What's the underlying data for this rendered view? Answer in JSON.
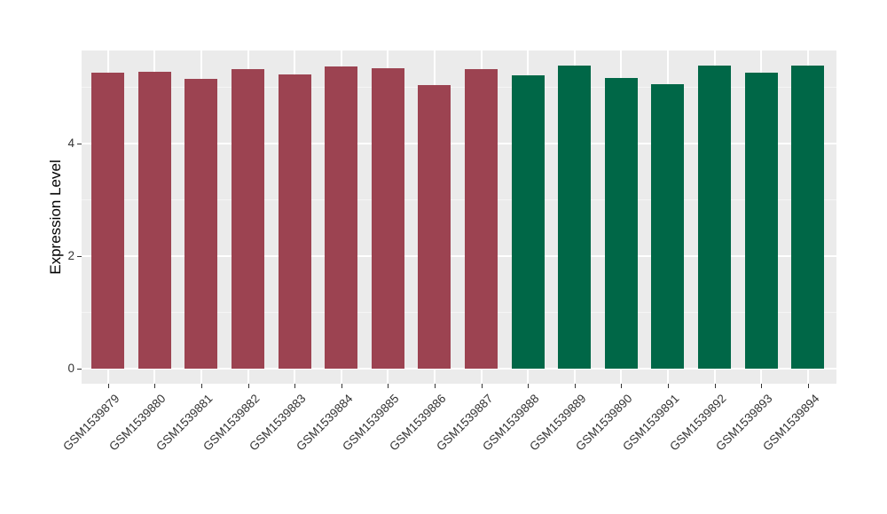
{
  "chart_data": {
    "type": "bar",
    "title": "",
    "xlabel": "",
    "ylabel": "Expression Level",
    "categories": [
      "GSM1539879",
      "GSM1539880",
      "GSM1539881",
      "GSM1539882",
      "GSM1539883",
      "GSM1539884",
      "GSM1539885",
      "GSM1539886",
      "GSM1539887",
      "GSM1539888",
      "GSM1539889",
      "GSM1539890",
      "GSM1539891",
      "GSM1539892",
      "GSM1539893",
      "GSM1539894"
    ],
    "values": [
      5.25,
      5.28,
      5.15,
      5.32,
      5.22,
      5.36,
      5.33,
      5.04,
      5.32,
      5.21,
      5.38,
      5.16,
      5.05,
      5.39,
      5.25,
      5.39
    ],
    "bar_colors": [
      "#9C4351",
      "#9C4351",
      "#9C4351",
      "#9C4351",
      "#9C4351",
      "#9C4351",
      "#9C4351",
      "#9C4351",
      "#9C4351",
      "#006747",
      "#006747",
      "#006747",
      "#006747",
      "#006747",
      "#006747",
      "#006747"
    ],
    "group_colors": {
      "group1": "#9C4351",
      "group2": "#006747"
    },
    "yticks": [
      0,
      2,
      4
    ],
    "minor_yticks": [
      1,
      3,
      5
    ],
    "ylim": [
      -0.27,
      5.65
    ],
    "legend": "none",
    "grid": "on",
    "panel_bg": "#EBEBEB",
    "grid_major_color": "#FFFFFF",
    "grid_minor_color": "#F5F5F5"
  }
}
